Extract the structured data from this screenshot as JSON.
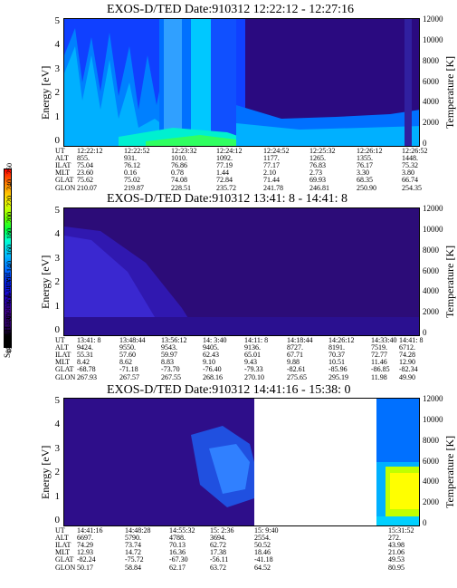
{
  "colorbar": {
    "label": "Second Harmonic Current",
    "ticks": [
      "40",
      "60",
      "80",
      "100",
      "120",
      "140",
      "160",
      "180",
      "200",
      "220",
      "240",
      "250"
    ]
  },
  "axes": {
    "energy_label": "Energy [eV]",
    "temperature_label": "Temperature [K]",
    "energy_ticks": [
      "5",
      "4",
      "3",
      "2",
      "1",
      "0"
    ],
    "temperature_ticks": [
      "12000",
      "10000",
      "8000",
      "6000",
      "4000",
      "2000",
      "0"
    ]
  },
  "panels": [
    {
      "title": "EXOS-D/TED   Date:910312  12:22:12 - 12:27:16",
      "orbit_labels": [
        "UT",
        "ALT",
        "ILAT",
        "MLT",
        "GLAT",
        "GLON"
      ],
      "columns": [
        [
          "12:22:12",
          "855.",
          "75.04",
          "23.60",
          "75.62",
          "210.07"
        ],
        [
          "12:22:52",
          "931.",
          "76.12",
          "0.16",
          "75.02",
          "219.87"
        ],
        [
          "12:23:32",
          "1010.",
          "76.86",
          "0.78",
          "74.08",
          "228.51"
        ],
        [
          "12:24:12",
          "1092.",
          "77.19",
          "1.44",
          "72.84",
          "235.72"
        ],
        [
          "12:24:52",
          "1177.",
          "77.17",
          "2.10",
          "71.44",
          "241.78"
        ],
        [
          "12:25:32",
          "1265.",
          "76.83",
          "2.73",
          "69.93",
          "246.81"
        ],
        [
          "12:26:12",
          "1355.",
          "76.17",
          "3.30",
          "68.35",
          "250.90"
        ],
        [
          "12:26:52",
          "1448.",
          "75.32",
          "3.80",
          "66.74",
          "254.35"
        ]
      ]
    },
    {
      "title": "EXOS-D/TED   Date:910312  13:41: 8 - 14:41: 8",
      "orbit_labels": [
        "UT",
        "ALT",
        "ILAT",
        "MLT",
        "GLAT",
        "GLON"
      ],
      "columns": [
        [
          "13:41: 8",
          "9424.",
          "55.31",
          "8.42",
          "-68.78",
          "267.93"
        ],
        [
          "13:48:44",
          "9550.",
          "57.60",
          "8.62",
          "-71.18",
          "267.57"
        ],
        [
          "13:56:12",
          "9543.",
          "59.97",
          "8.83",
          "-73.70",
          "267.55"
        ],
        [
          "14: 3:40",
          "9405.",
          "62.43",
          "9.10",
          "-76.40",
          "268.16"
        ],
        [
          "14:11: 8",
          "9136.",
          "65.01",
          "9.43",
          "-79.33",
          "270.10"
        ],
        [
          "14:18:44",
          "8727.",
          "67.71",
          "9.88",
          "-82.61",
          "275.65"
        ],
        [
          "14:26:12",
          "8191.",
          "70.37",
          "10.51",
          "-85.96",
          "295.19"
        ],
        [
          "14:33:40",
          "7519.",
          "72.77",
          "11.46",
          "-86.85",
          "11.98"
        ],
        [
          "14:41: 8",
          "6712.",
          "74.28",
          "12.90",
          "-82.34",
          "49.90"
        ]
      ]
    },
    {
      "title": "EXOS-D/TED   Date:910312  14:41:16 - 15:38: 0",
      "orbit_labels": [
        "UT",
        "ALT",
        "ILAT",
        "MLT",
        "GLAT",
        "GLON"
      ],
      "columns": [
        [
          "14:41:16",
          "6697.",
          "74.29",
          "12.93",
          "-82.24",
          "50.17"
        ],
        [
          "14:48:28",
          "5790.",
          "73.74",
          "14.72",
          "-75.72",
          "58.84"
        ],
        [
          "14:55:32",
          "4788.",
          "70.13",
          "16.36",
          "-67.30",
          "62.17"
        ],
        [
          "15: 2:36",
          "3694.",
          "62.72",
          "17.38",
          "-56.11",
          "63.72"
        ],
        [
          "15: 9:40",
          "2554.",
          "50.52",
          "18.46",
          "-41.18",
          "64.52"
        ],
        [
          "15:31:52",
          "272.",
          "43.98",
          "21.06",
          "49.53",
          "80.95"
        ]
      ]
    }
  ]
}
